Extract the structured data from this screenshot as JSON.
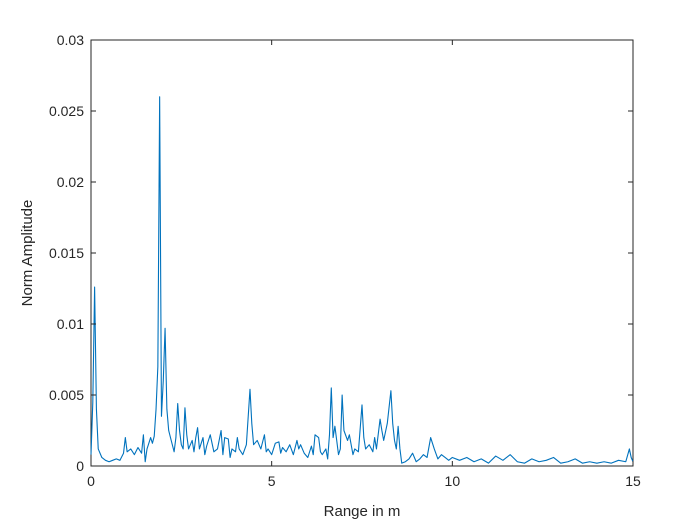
{
  "chart_data": {
    "type": "line",
    "xlabel": "Range in m",
    "ylabel": "Norm Amplitude",
    "xlim": [
      0,
      15
    ],
    "ylim": [
      0,
      0.03
    ],
    "grid": false,
    "x_ticks": [
      0,
      5,
      10,
      15
    ],
    "x_tick_labels": [
      "0",
      "5",
      "10",
      "15"
    ],
    "y_ticks": [
      0,
      0.005,
      0.01,
      0.015,
      0.02,
      0.025,
      0.03
    ],
    "y_tick_labels": [
      "0",
      "0.005",
      "0.01",
      "0.015",
      "0.02",
      "0.025",
      "0.03"
    ],
    "line_color": "#0072BD",
    "series": [
      {
        "points": [
          [
            0.0,
            0.0008
          ],
          [
            0.05,
            0.0045
          ],
          [
            0.1,
            0.0126
          ],
          [
            0.15,
            0.004
          ],
          [
            0.2,
            0.0012
          ],
          [
            0.3,
            0.0006
          ],
          [
            0.4,
            0.0004
          ],
          [
            0.5,
            0.0003
          ],
          [
            0.6,
            0.0004
          ],
          [
            0.7,
            0.0005
          ],
          [
            0.8,
            0.0004
          ],
          [
            0.9,
            0.0009
          ],
          [
            0.95,
            0.002
          ],
          [
            1.0,
            0.001
          ],
          [
            1.1,
            0.0012
          ],
          [
            1.2,
            0.0008
          ],
          [
            1.3,
            0.0013
          ],
          [
            1.4,
            0.0009
          ],
          [
            1.45,
            0.0022
          ],
          [
            1.5,
            0.0003
          ],
          [
            1.55,
            0.0012
          ],
          [
            1.6,
            0.0016
          ],
          [
            1.65,
            0.002
          ],
          [
            1.7,
            0.0016
          ],
          [
            1.75,
            0.0021
          ],
          [
            1.8,
            0.004
          ],
          [
            1.85,
            0.007
          ],
          [
            1.9,
            0.026
          ],
          [
            1.95,
            0.0035
          ],
          [
            2.0,
            0.006
          ],
          [
            2.05,
            0.0097
          ],
          [
            2.1,
            0.004
          ],
          [
            2.15,
            0.0025
          ],
          [
            2.2,
            0.002
          ],
          [
            2.3,
            0.001
          ],
          [
            2.35,
            0.002
          ],
          [
            2.4,
            0.0044
          ],
          [
            2.45,
            0.0025
          ],
          [
            2.5,
            0.0015
          ],
          [
            2.55,
            0.0012
          ],
          [
            2.6,
            0.0041
          ],
          [
            2.65,
            0.0022
          ],
          [
            2.7,
            0.0012
          ],
          [
            2.8,
            0.0018
          ],
          [
            2.85,
            0.001
          ],
          [
            2.9,
            0.002
          ],
          [
            2.95,
            0.0027
          ],
          [
            3.0,
            0.0012
          ],
          [
            3.1,
            0.002
          ],
          [
            3.15,
            0.0008
          ],
          [
            3.2,
            0.0014
          ],
          [
            3.3,
            0.0022
          ],
          [
            3.4,
            0.001
          ],
          [
            3.5,
            0.0012
          ],
          [
            3.6,
            0.0025
          ],
          [
            3.65,
            0.0008
          ],
          [
            3.7,
            0.002
          ],
          [
            3.8,
            0.0019
          ],
          [
            3.85,
            0.0006
          ],
          [
            3.9,
            0.0012
          ],
          [
            4.0,
            0.001
          ],
          [
            4.05,
            0.002
          ],
          [
            4.1,
            0.0012
          ],
          [
            4.2,
            0.0008
          ],
          [
            4.3,
            0.0015
          ],
          [
            4.4,
            0.0054
          ],
          [
            4.45,
            0.003
          ],
          [
            4.5,
            0.0015
          ],
          [
            4.6,
            0.0018
          ],
          [
            4.7,
            0.0012
          ],
          [
            4.8,
            0.0022
          ],
          [
            4.85,
            0.001
          ],
          [
            4.9,
            0.0012
          ],
          [
            5.0,
            0.0008
          ],
          [
            5.1,
            0.0016
          ],
          [
            5.2,
            0.0017
          ],
          [
            5.25,
            0.0009
          ],
          [
            5.3,
            0.0013
          ],
          [
            5.4,
            0.001
          ],
          [
            5.5,
            0.0015
          ],
          [
            5.6,
            0.0008
          ],
          [
            5.7,
            0.0018
          ],
          [
            5.75,
            0.0012
          ],
          [
            5.8,
            0.0015
          ],
          [
            5.9,
            0.0009
          ],
          [
            6.0,
            0.0006
          ],
          [
            6.1,
            0.0014
          ],
          [
            6.15,
            0.0008
          ],
          [
            6.2,
            0.0022
          ],
          [
            6.3,
            0.002
          ],
          [
            6.35,
            0.001
          ],
          [
            6.4,
            0.0008
          ],
          [
            6.5,
            0.0012
          ],
          [
            6.55,
            0.0005
          ],
          [
            6.6,
            0.0022
          ],
          [
            6.65,
            0.0055
          ],
          [
            6.7,
            0.002
          ],
          [
            6.75,
            0.0028
          ],
          [
            6.8,
            0.0018
          ],
          [
            6.85,
            0.0008
          ],
          [
            6.9,
            0.0012
          ],
          [
            6.95,
            0.005
          ],
          [
            7.0,
            0.0025
          ],
          [
            7.1,
            0.0018
          ],
          [
            7.15,
            0.0022
          ],
          [
            7.2,
            0.0015
          ],
          [
            7.25,
            0.0008
          ],
          [
            7.3,
            0.0012
          ],
          [
            7.4,
            0.001
          ],
          [
            7.5,
            0.0043
          ],
          [
            7.55,
            0.002
          ],
          [
            7.6,
            0.0012
          ],
          [
            7.7,
            0.0015
          ],
          [
            7.8,
            0.001
          ],
          [
            7.85,
            0.002
          ],
          [
            7.9,
            0.0012
          ],
          [
            8.0,
            0.0033
          ],
          [
            8.05,
            0.0025
          ],
          [
            8.1,
            0.0018
          ],
          [
            8.2,
            0.003
          ],
          [
            8.3,
            0.0053
          ],
          [
            8.35,
            0.003
          ],
          [
            8.4,
            0.0018
          ],
          [
            8.45,
            0.0012
          ],
          [
            8.5,
            0.0028
          ],
          [
            8.55,
            0.0012
          ],
          [
            8.6,
            0.0002
          ],
          [
            8.7,
            0.0003
          ],
          [
            8.8,
            0.0005
          ],
          [
            8.9,
            0.0009
          ],
          [
            9.0,
            0.0003
          ],
          [
            9.1,
            0.0005
          ],
          [
            9.2,
            0.0008
          ],
          [
            9.3,
            0.0006
          ],
          [
            9.4,
            0.002
          ],
          [
            9.5,
            0.0012
          ],
          [
            9.6,
            0.0005
          ],
          [
            9.7,
            0.0008
          ],
          [
            9.8,
            0.0006
          ],
          [
            9.9,
            0.0004
          ],
          [
            10.0,
            0.0006
          ],
          [
            10.2,
            0.0004
          ],
          [
            10.4,
            0.0006
          ],
          [
            10.6,
            0.0003
          ],
          [
            10.8,
            0.0005
          ],
          [
            11.0,
            0.0002
          ],
          [
            11.2,
            0.0007
          ],
          [
            11.4,
            0.0004
          ],
          [
            11.6,
            0.0008
          ],
          [
            11.8,
            0.0003
          ],
          [
            12.0,
            0.0002
          ],
          [
            12.2,
            0.0005
          ],
          [
            12.4,
            0.0003
          ],
          [
            12.6,
            0.0004
          ],
          [
            12.8,
            0.0006
          ],
          [
            13.0,
            0.0002
          ],
          [
            13.2,
            0.0003
          ],
          [
            13.4,
            0.0005
          ],
          [
            13.6,
            0.0002
          ],
          [
            13.8,
            0.0003
          ],
          [
            14.0,
            0.0002
          ],
          [
            14.2,
            0.0003
          ],
          [
            14.4,
            0.0002
          ],
          [
            14.6,
            0.0004
          ],
          [
            14.8,
            0.0003
          ],
          [
            14.9,
            0.0012
          ],
          [
            14.95,
            0.0006
          ],
          [
            15.0,
            0.0003
          ]
        ]
      }
    ]
  }
}
